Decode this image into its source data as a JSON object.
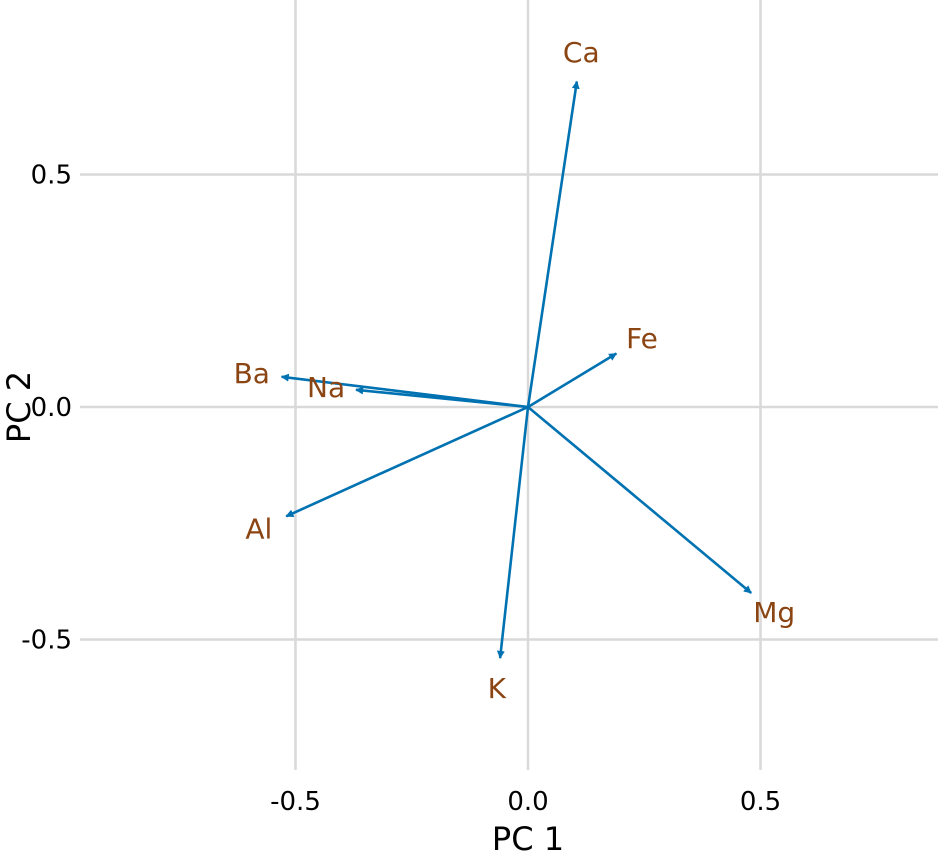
{
  "chart_data": {
    "type": "scatter",
    "subtype": "pca-loadings-biplot",
    "title": "",
    "xlabel": "PC 1",
    "ylabel": "PC 2",
    "xlim": [
      -0.9,
      0.9
    ],
    "ylim": [
      -0.78,
      0.87
    ],
    "xticks": [
      -0.5,
      0.0,
      0.5
    ],
    "yticks": [
      -0.5,
      0.0,
      0.5
    ],
    "xtick_labels": [
      "-0.5",
      "0.0",
      "0.5"
    ],
    "ytick_labels": [
      "-0.5",
      "0.0",
      "0.5"
    ],
    "grid": true,
    "legend": false,
    "arrow_color": "#0072B2",
    "label_color": "#8B4513",
    "grid_color": "#d9d9d9",
    "loadings": [
      {
        "name": "Ca",
        "x": 0.105,
        "y": 0.7
      },
      {
        "name": "Fe",
        "x": 0.19,
        "y": 0.115
      },
      {
        "name": "Ba",
        "x": -0.53,
        "y": 0.065
      },
      {
        "name": "Na",
        "x": -0.37,
        "y": 0.037
      },
      {
        "name": "Al",
        "x": -0.52,
        "y": -0.235
      },
      {
        "name": "K",
        "x": -0.06,
        "y": -0.54
      },
      {
        "name": "Mg",
        "x": 0.48,
        "y": -0.4
      }
    ]
  }
}
